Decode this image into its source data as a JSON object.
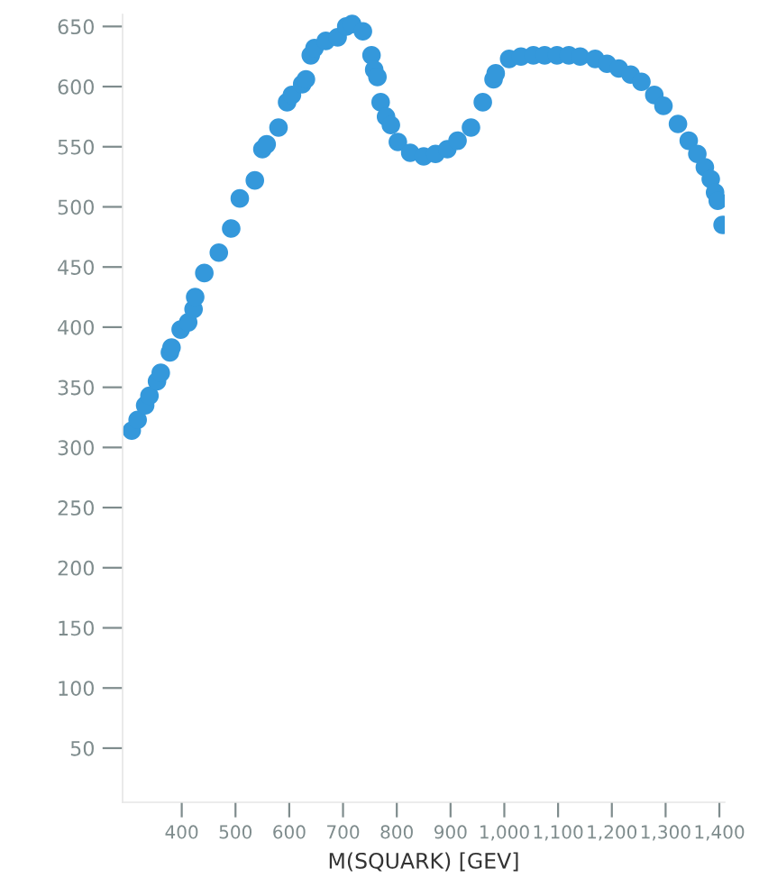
{
  "chart_data": {
    "type": "scatter",
    "xlabel": "M(SQUARK) [GEV]",
    "x": [
      307,
      318,
      332,
      340,
      354,
      361,
      378,
      381,
      398,
      412,
      422,
      425,
      442,
      469,
      492,
      508,
      536,
      550,
      558,
      580,
      596,
      605,
      624,
      631,
      640,
      647,
      668,
      690,
      706,
      717,
      737,
      753,
      758,
      764,
      770,
      780,
      789,
      802,
      825,
      850,
      872,
      894,
      913,
      938,
      960,
      980,
      984,
      1009,
      1031,
      1054,
      1075,
      1098,
      1120,
      1141,
      1169,
      1191,
      1213,
      1235,
      1255,
      1279,
      1296,
      1323,
      1343,
      1359,
      1373,
      1384,
      1392,
      1397,
      1406
    ],
    "series": [
      {
        "color": "#3498db",
        "values": [
          314,
          323,
          335,
          343,
          355,
          362,
          379,
          383,
          398,
          404,
          415,
          425,
          445,
          462,
          482,
          507,
          522,
          548,
          552,
          566,
          587,
          593,
          602,
          606,
          626,
          632,
          638,
          641,
          650,
          652,
          646,
          626,
          614,
          608,
          587,
          575,
          568,
          554,
          545,
          542,
          544,
          548,
          555,
          566,
          587,
          606,
          611,
          623,
          625,
          626,
          626,
          626,
          626,
          625,
          623,
          619,
          615,
          610,
          604,
          593,
          584,
          569,
          555,
          544,
          533,
          523,
          512,
          505,
          485
        ]
      }
    ],
    "xlim": [
      290,
      1410
    ],
    "ylim": [
      5,
      660
    ],
    "xticks": [
      {
        "value": 400,
        "label": "400"
      },
      {
        "value": 500,
        "label": "500"
      },
      {
        "value": 600,
        "label": "600"
      },
      {
        "value": 700,
        "label": "700"
      },
      {
        "value": 800,
        "label": "800"
      },
      {
        "value": 900,
        "label": "900"
      },
      {
        "value": 1000,
        "label": "1,000"
      },
      {
        "value": 1100,
        "label": "1,100"
      },
      {
        "value": 1200,
        "label": "1,200"
      },
      {
        "value": 1300,
        "label": "1,300"
      },
      {
        "value": 1400,
        "label": "1,400"
      }
    ],
    "yticks": [
      50,
      100,
      150,
      200,
      250,
      300,
      350,
      400,
      450,
      500,
      550,
      600,
      650
    ],
    "marker": "circle",
    "grid": false,
    "legend": false
  }
}
